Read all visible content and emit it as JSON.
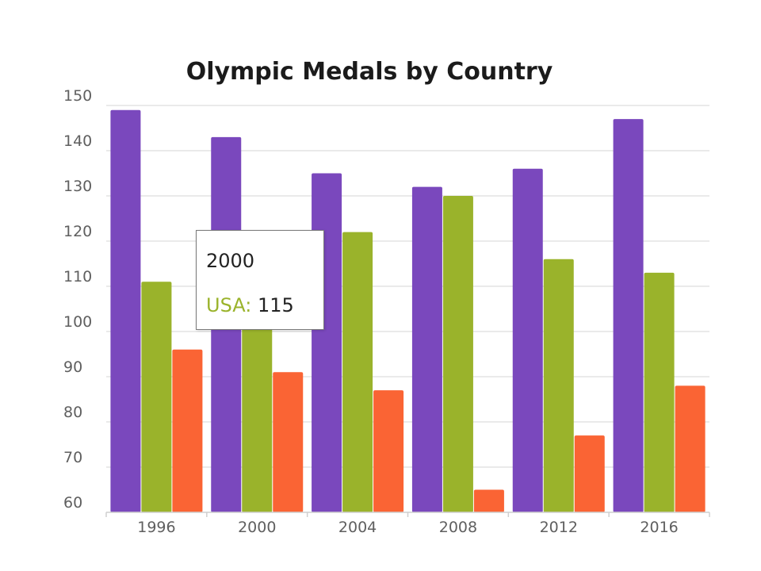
{
  "chart_data": {
    "type": "bar",
    "title": "Olympic Medals by Country",
    "xlabel": "",
    "ylabel": "",
    "categories": [
      "1996",
      "2000",
      "2004",
      "2008",
      "2012",
      "2016"
    ],
    "ylim": [
      60,
      150
    ],
    "yticks": [
      "60",
      "70",
      "80",
      "90",
      "100",
      "110",
      "120",
      "130",
      "140",
      "150"
    ],
    "grid": true,
    "series": [
      {
        "color": "#7a48bd",
        "values": [
          149,
          143,
          135,
          132,
          136,
          147
        ]
      },
      {
        "name": "USA",
        "color": "#9ab32b",
        "values": [
          111,
          115,
          122,
          130,
          116,
          113
        ]
      },
      {
        "color": "#fa6434",
        "values": [
          96,
          91,
          87,
          65,
          77,
          88
        ]
      }
    ]
  },
  "tooltip": {
    "title": "2000",
    "series_label": "USA:",
    "value": "115"
  }
}
